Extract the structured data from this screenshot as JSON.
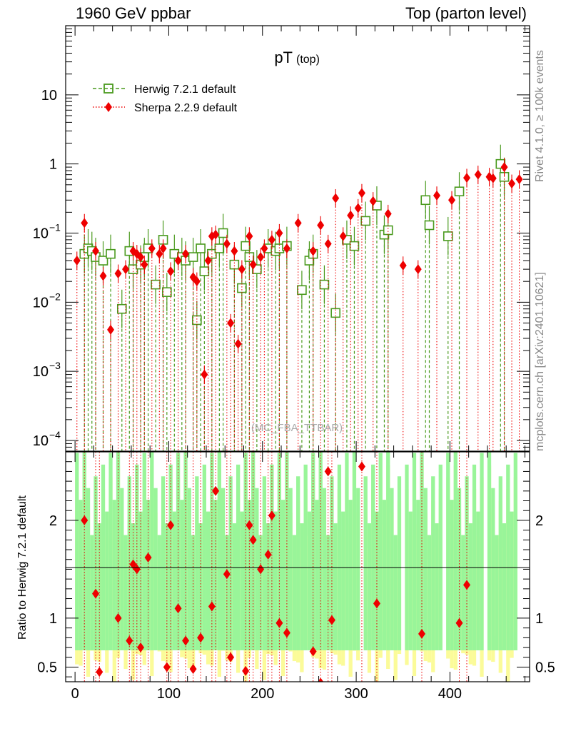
{
  "header": {
    "left": "1960 GeV ppbar",
    "right": "Top (parton level)"
  },
  "side_labels": {
    "rivet": "Rivet 4.1.0, ≥ 100k events",
    "mcplots": "mcplots.cern.ch [arXiv:2401.10621]"
  },
  "watermark": "(MC_FBA_TTBAR)",
  "colors": {
    "herwig": "#4a9a1e",
    "sherpa": "#ee0000",
    "band_green": "#99f599",
    "band_yellow": "#fbfb99"
  },
  "chart_data": {
    "type": "scatter",
    "title": "pT",
    "title_sub": "(top)",
    "xlim": [
      -10,
      485
    ],
    "ylim": [
      7e-05,
      100
    ],
    "yscale": "log",
    "xticks": [
      0,
      100,
      200,
      300,
      400
    ],
    "yticks": [
      {
        "v": 10,
        "base": "10",
        "exp": ""
      },
      {
        "v": 1,
        "base": "1",
        "exp": ""
      },
      {
        "v": 0.1,
        "base": "10",
        "exp": "−1"
      },
      {
        "v": 0.01,
        "base": "10",
        "exp": "−2"
      },
      {
        "v": 0.001,
        "base": "10",
        "exp": "−3"
      },
      {
        "v": 0.0001,
        "base": "10",
        "exp": "−4"
      }
    ],
    "legend": [
      {
        "name": "Herwig 7.2.1 default",
        "marker": "square"
      },
      {
        "name": "Sherpa 2.2.9 default",
        "marker": "diamond"
      }
    ],
    "series": [
      {
        "name": "Herwig 7.2.1 default",
        "x": [
          10,
          14,
          18,
          22,
          30,
          38,
          50,
          58,
          62,
          70,
          74,
          78,
          86,
          94,
          98,
          106,
          114,
          118,
          126,
          130,
          134,
          138,
          146,
          154,
          158,
          170,
          178,
          182,
          186,
          194,
          206,
          214,
          218,
          226,
          242,
          250,
          254,
          266,
          278,
          290,
          298,
          310,
          322,
          330,
          334,
          374,
          378,
          398,
          410,
          454,
          458
        ],
        "y": [
          0.05,
          0.06,
          0.055,
          0.045,
          0.04,
          0.05,
          0.008,
          0.055,
          0.03,
          0.035,
          0.045,
          0.06,
          0.018,
          0.08,
          0.014,
          0.05,
          0.045,
          0.04,
          0.045,
          0.0055,
          0.06,
          0.028,
          0.05,
          0.06,
          0.1,
          0.035,
          0.016,
          0.065,
          0.045,
          0.03,
          0.06,
          0.055,
          0.06,
          0.065,
          0.015,
          0.04,
          0.05,
          0.018,
          0.007,
          0.08,
          0.065,
          0.15,
          0.25,
          0.095,
          0.11,
          0.3,
          0.13,
          0.09,
          0.4,
          1.0,
          0.65
        ]
      },
      {
        "name": "Sherpa 2.2.9 default",
        "x": [
          2,
          10,
          22,
          30,
          38,
          46,
          54,
          62,
          66,
          70,
          74,
          82,
          90,
          94,
          102,
          110,
          118,
          126,
          130,
          138,
          142,
          146,
          150,
          162,
          166,
          170,
          174,
          178,
          186,
          190,
          198,
          202,
          210,
          218,
          226,
          238,
          254,
          262,
          270,
          278,
          286,
          294,
          302,
          306,
          318,
          334,
          350,
          366,
          386,
          402,
          418,
          430,
          442,
          446,
          458,
          466,
          474
        ],
        "y": [
          0.04,
          0.14,
          0.055,
          0.024,
          0.004,
          0.026,
          0.03,
          0.055,
          0.05,
          0.045,
          0.035,
          0.06,
          0.05,
          0.06,
          0.028,
          0.04,
          0.05,
          0.023,
          0.02,
          0.0009,
          0.04,
          0.09,
          0.095,
          0.07,
          0.005,
          0.055,
          0.0025,
          0.03,
          0.09,
          0.035,
          0.045,
          0.06,
          0.08,
          0.1,
          0.06,
          0.14,
          0.055,
          0.13,
          0.07,
          0.32,
          0.09,
          0.18,
          0.23,
          0.38,
          0.29,
          0.19,
          0.034,
          0.03,
          0.35,
          0.3,
          0.63,
          0.7,
          0.65,
          0.62,
          0.9,
          0.52,
          0.6
        ]
      }
    ],
    "ratio": {
      "ylabel": "Ratio to Herwig 7.2.1 default",
      "ylim": [
        0.35,
        2.7
      ],
      "yticks": [
        0.5,
        1,
        2
      ],
      "points": {
        "x": [
          10,
          22,
          26,
          46,
          58,
          62,
          66,
          70,
          78,
          98,
          102,
          110,
          118,
          126,
          134,
          146,
          150,
          162,
          166,
          182,
          186,
          190,
          198,
          206,
          210,
          218,
          226,
          254,
          262,
          270,
          274,
          306,
          322,
          370,
          410,
          418
        ],
        "y": [
          2.0,
          1.25,
          0.45,
          1.0,
          0.77,
          1.55,
          1.5,
          0.7,
          1.62,
          0.5,
          1.95,
          1.1,
          0.77,
          0.48,
          0.8,
          1.12,
          2.3,
          1.45,
          0.6,
          0.46,
          1.95,
          1.8,
          1.5,
          1.65,
          2.05,
          0.95,
          0.85,
          0.66,
          0.34,
          2.5,
          0.98,
          2.55,
          1.15,
          0.84,
          0.95,
          1.34
        ]
      }
    }
  }
}
